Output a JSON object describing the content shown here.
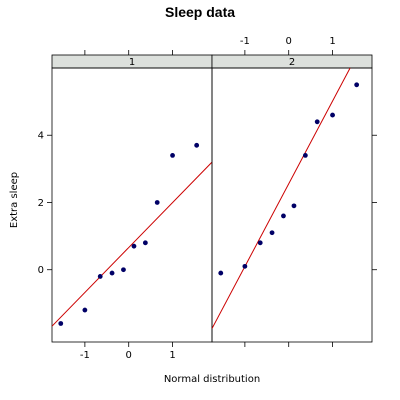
{
  "chart_data": {
    "type": "scatter",
    "title": "Sleep data",
    "xlabel": "Normal distribution",
    "ylabel": "Extra sleep",
    "xlim": [
      -1.75,
      1.9
    ],
    "ylim": [
      -2.15,
      6.0
    ],
    "grid": false,
    "legend": "none",
    "x_ticks": [
      -1,
      0,
      1
    ],
    "y_ticks": [
      0,
      2,
      4
    ],
    "point_color": "#000066",
    "line_color": "#cc0000",
    "strip_color": "#dce0dc",
    "panels": [
      {
        "strip_label": "1",
        "x": [
          -1.55,
          -1.0,
          -0.65,
          -0.38,
          -0.12,
          0.12,
          0.38,
          0.65,
          1.0,
          1.55
        ],
        "y": [
          -1.6,
          -1.2,
          -0.2,
          -0.1,
          0.0,
          0.7,
          0.8,
          2.0,
          3.4,
          3.7
        ],
        "line": [
          [
            -1.75,
            -1.68
          ],
          [
            1.9,
            3.2
          ]
        ]
      },
      {
        "strip_label": "2",
        "x": [
          -1.55,
          -1.0,
          -0.65,
          -0.38,
          -0.12,
          0.12,
          0.38,
          0.65,
          1.0,
          1.55
        ],
        "y": [
          -0.1,
          0.1,
          0.8,
          1.1,
          1.6,
          1.9,
          3.4,
          4.4,
          4.6,
          5.5
        ],
        "line": [
          [
            -1.75,
            -1.75
          ],
          [
            1.4,
            6.0
          ]
        ]
      }
    ]
  }
}
